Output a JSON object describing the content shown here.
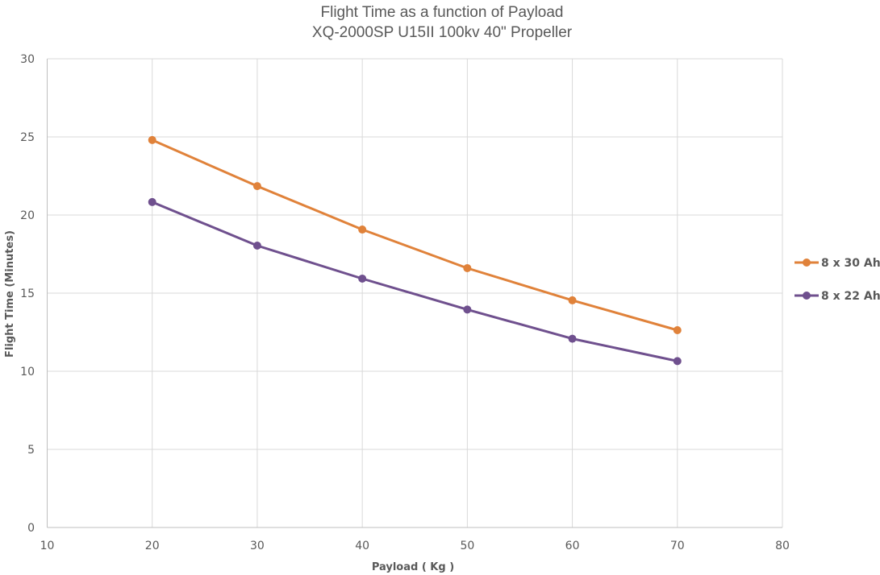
{
  "chart_data": {
    "type": "line",
    "title": "Flight Time  as a function  of Payload",
    "subtitle": "XQ-2000SP U15II  100kv 40\" Propeller",
    "xlabel": "Payload ( Kg )",
    "ylabel": "Flight Time (Minutes)",
    "xlim": [
      10,
      80
    ],
    "ylim": [
      0,
      30
    ],
    "xticks": [
      10,
      20,
      30,
      40,
      50,
      60,
      70,
      80
    ],
    "yticks": [
      0,
      5,
      10,
      15,
      20,
      25,
      30
    ],
    "grid": true,
    "legend_position": "right",
    "x": [
      20,
      30,
      40,
      50,
      60,
      70
    ],
    "series": [
      {
        "name": "8 x 30 Ah",
        "color": "#e0823a",
        "values": [
          24.8,
          21.85,
          19.07,
          16.6,
          14.54,
          12.63
        ]
      },
      {
        "name": "8 x 22 Ah",
        "color": "#6f508e",
        "values": [
          20.83,
          18.04,
          15.93,
          13.95,
          12.08,
          10.65
        ]
      }
    ]
  }
}
